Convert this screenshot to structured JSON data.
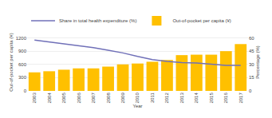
{
  "chart_data": {
    "type": "bar",
    "xlabel": "Year",
    "ylabel": "Out-of-pocket per capita (¥)",
    "y2label": "Percentage (%)",
    "categories": [
      "2003",
      "2004",
      "2005",
      "2006",
      "2007",
      "2008",
      "2009",
      "2010",
      "2011",
      "2012",
      "2013",
      "2014",
      "2015",
      "2016",
      "2017"
    ],
    "series": [
      {
        "name": "Share in total health expenditure (%)",
        "type": "line",
        "axis": "y2",
        "color": "#7070B8",
        "values": [
          57.5,
          55.5,
          53.0,
          51.0,
          49.0,
          46.0,
          43.0,
          39.0,
          35.5,
          33.5,
          32.0,
          31.5,
          30.5,
          29.0,
          28.8
        ]
      },
      {
        "name": "Out-of-pocket per capita (¥)",
        "type": "bar",
        "color": "#FFC000",
        "values": [
          420,
          445,
          480,
          510,
          510,
          550,
          600,
          620,
          660,
          700,
          810,
          820,
          820,
          900,
          1060
        ]
      }
    ],
    "ylim": [
      0,
      1300
    ],
    "yticks": [
      0,
      300,
      600,
      900,
      1200
    ],
    "y2lim": [
      0,
      65
    ],
    "y2ticks": [
      0,
      15,
      30,
      45,
      60
    ],
    "grid": true,
    "legend": "upper left"
  }
}
